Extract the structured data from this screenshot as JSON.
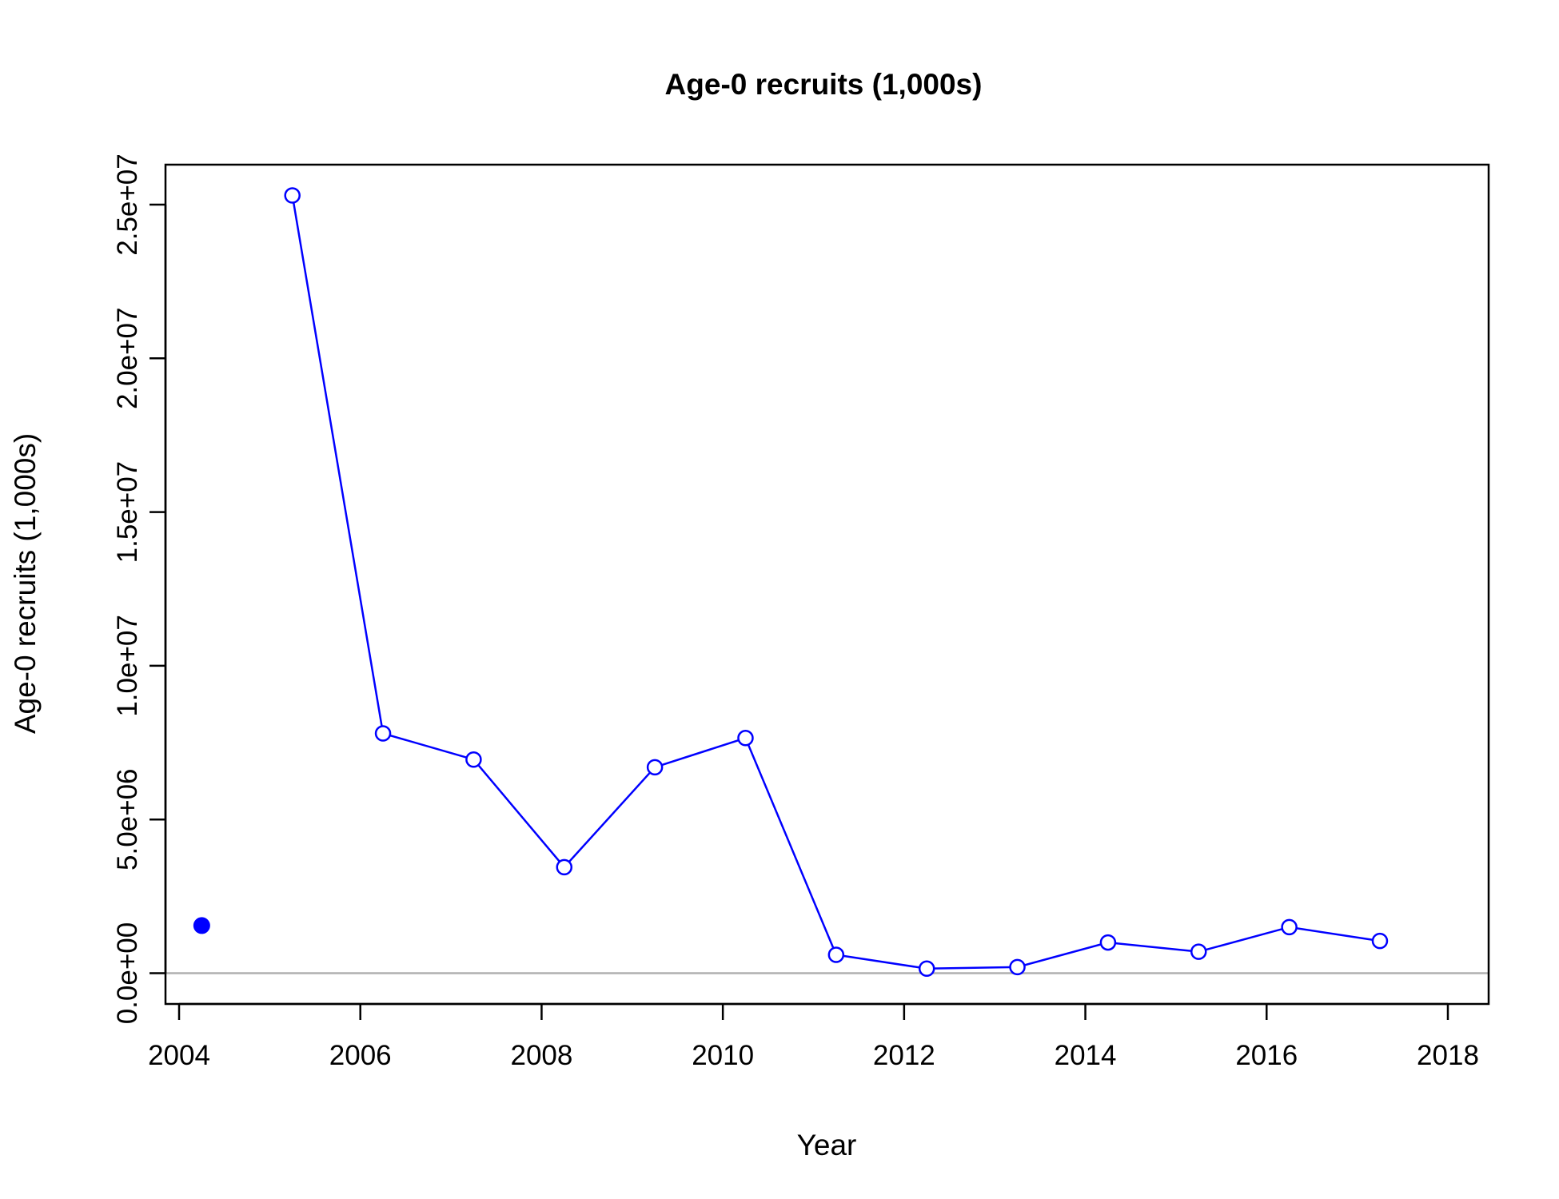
{
  "chart_data": {
    "type": "line",
    "title": "Age-0 recruits (1,000s)",
    "xlabel": "Year",
    "ylabel": "Age-0 recruits (1,000s)",
    "xlim": [
      2003.85,
      2018.45
    ],
    "ylim": [
      -1000000,
      26300000
    ],
    "x_ticks": [
      2004,
      2006,
      2008,
      2010,
      2012,
      2014,
      2016,
      2018
    ],
    "x_tick_labels": [
      "2004",
      "2006",
      "2008",
      "2010",
      "2012",
      "2014",
      "2016",
      "2018"
    ],
    "y_ticks": [
      0,
      5000000,
      10000000,
      15000000,
      20000000,
      25000000
    ],
    "y_tick_labels": [
      "0.0e+00",
      "5.0e+06",
      "1.0e+07",
      "1.5e+07",
      "2.0e+07",
      "2.5e+07"
    ],
    "reference_line": {
      "y": 0,
      "color": "#b0b0b0"
    },
    "series": [
      {
        "color": "#0000ff",
        "marker": "open-circle",
        "x": [
          2005.25,
          2006.25,
          2007.25,
          2008.25,
          2009.25,
          2010.25,
          2011.25,
          2012.25,
          2013.25,
          2014.25,
          2015.25,
          2016.25,
          2017.25
        ],
        "y": [
          25300000,
          7800000,
          6950000,
          3450000,
          6700000,
          7650000,
          600000,
          150000,
          200000,
          1000000,
          700000,
          1500000,
          1050000
        ]
      }
    ],
    "highlight_point": {
      "x": 2004.25,
      "y": 1550000,
      "color": "#0000ff",
      "marker": "filled-circle"
    },
    "grid": false,
    "legend": "none"
  }
}
